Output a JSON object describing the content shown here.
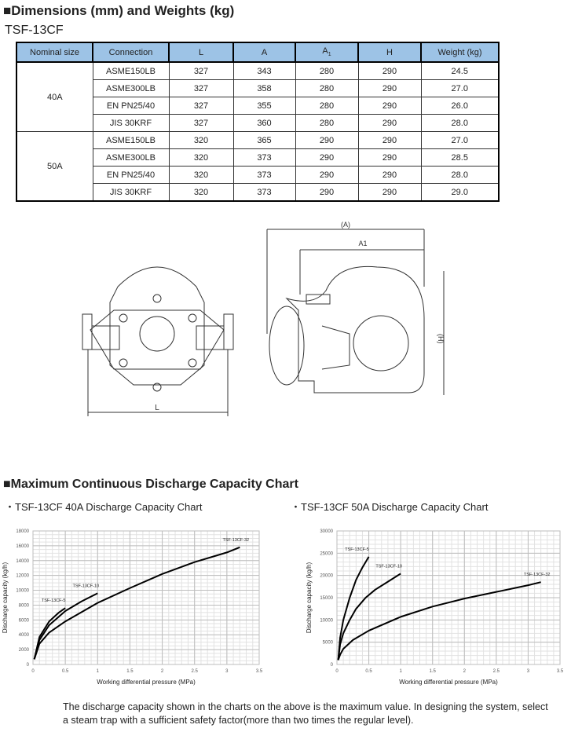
{
  "dimensions": {
    "heading": "■Dimensions (mm) and Weights (kg)",
    "model": "TSF-13CF",
    "columns": [
      "Nominal size",
      "Connection",
      "L",
      "A",
      "A1",
      "H",
      "Weight (kg)"
    ],
    "groups": [
      {
        "size": "40A",
        "rows": [
          [
            "ASME150LB",
            "327",
            "343",
            "280",
            "290",
            "24.5"
          ],
          [
            "ASME300LB",
            "327",
            "358",
            "280",
            "290",
            "27.0"
          ],
          [
            "EN PN25/40",
            "327",
            "355",
            "280",
            "290",
            "26.0"
          ],
          [
            "JIS 30KRF",
            "327",
            "360",
            "280",
            "290",
            "28.0"
          ]
        ]
      },
      {
        "size": "50A",
        "rows": [
          [
            "ASME150LB",
            "320",
            "365",
            "290",
            "290",
            "27.0"
          ],
          [
            "ASME300LB",
            "320",
            "373",
            "290",
            "290",
            "28.5"
          ],
          [
            "EN PN25/40",
            "320",
            "373",
            "290",
            "290",
            "28.0"
          ],
          [
            "JIS 30KRF",
            "320",
            "373",
            "290",
            "290",
            "29.0"
          ]
        ]
      }
    ]
  },
  "drawing": {
    "label_L": "L",
    "label_A": "(A)",
    "label_A1": "A1",
    "label_H": "(H)"
  },
  "capacity": {
    "heading": "■Maximum Continuous Discharge Capacity Chart",
    "note": "The discharge capacity shown in the charts on the above is the maximum value. In designing the system, select a steam trap with a sufficient safety factor(more than two times the regular level)."
  },
  "chart_data": [
    {
      "type": "line",
      "title": "・TSF-13CF 40A Discharge Capacity Chart",
      "xlabel": "Working differential pressure (MPa)",
      "ylabel": "Discharge capacity (kg/h)",
      "xlim": [
        0,
        3.5
      ],
      "ylim": [
        0,
        18000
      ],
      "xticks": [
        "0",
        "0.5",
        "1",
        "1.5",
        "2",
        "2.5",
        "3",
        "3.5"
      ],
      "yticks": [
        "0",
        "2000",
        "4000",
        "6000",
        "8000",
        "10000",
        "12000",
        "14000",
        "16000",
        "18000"
      ],
      "grid": true,
      "series": [
        {
          "name": "TSF-13CF-5",
          "points": [
            [
              0.02,
              700
            ],
            [
              0.1,
              3700
            ],
            [
              0.25,
              5800
            ],
            [
              0.4,
              7000
            ],
            [
              0.5,
              7600
            ]
          ]
        },
        {
          "name": "TSF-13CF-10",
          "points": [
            [
              0.02,
              700
            ],
            [
              0.1,
              3300
            ],
            [
              0.25,
              5300
            ],
            [
              0.5,
              7200
            ],
            [
              0.75,
              8500
            ],
            [
              1,
              9600
            ]
          ]
        },
        {
          "name": "TSF-13CF-32",
          "points": [
            [
              0.02,
              700
            ],
            [
              0.1,
              2800
            ],
            [
              0.25,
              4300
            ],
            [
              0.5,
              5800
            ],
            [
              1,
              8300
            ],
            [
              1.5,
              10300
            ],
            [
              2,
              12200
            ],
            [
              2.5,
              13800
            ],
            [
              3,
              15100
            ],
            [
              3.2,
              15800
            ]
          ]
        }
      ]
    },
    {
      "type": "line",
      "title": "・TSF-13CF 50A Discharge Capacity Chart",
      "xlabel": "Working differential pressure (MPa)",
      "ylabel": "Discharge capacity (kg/h)",
      "xlim": [
        0,
        3.5
      ],
      "ylim": [
        0,
        30000
      ],
      "xticks": [
        "0",
        "0.5",
        "1",
        "1.5",
        "2",
        "2.5",
        "3",
        "3.5"
      ],
      "yticks": [
        "0",
        "5000",
        "10000",
        "15000",
        "20000",
        "25000",
        "30000"
      ],
      "grid": true,
      "series": [
        {
          "name": "TSF-13CF-5",
          "points": [
            [
              0.02,
              1000
            ],
            [
              0.05,
              6000
            ],
            [
              0.1,
              10000
            ],
            [
              0.2,
              15000
            ],
            [
              0.3,
              19000
            ],
            [
              0.4,
              21800
            ],
            [
              0.5,
              24200
            ]
          ]
        },
        {
          "name": "TSF-13CF-10",
          "points": [
            [
              0.02,
              1000
            ],
            [
              0.05,
              4500
            ],
            [
              0.1,
              7000
            ],
            [
              0.2,
              10000
            ],
            [
              0.3,
              12500
            ],
            [
              0.45,
              15000
            ],
            [
              0.6,
              16800
            ],
            [
              0.8,
              18600
            ],
            [
              1,
              20400
            ]
          ]
        },
        {
          "name": "TSF-13CF-32",
          "points": [
            [
              0.02,
              1000
            ],
            [
              0.05,
              2200
            ],
            [
              0.1,
              3500
            ],
            [
              0.25,
              5500
            ],
            [
              0.5,
              7600
            ],
            [
              1,
              10700
            ],
            [
              1.5,
              13000
            ],
            [
              2,
              14800
            ],
            [
              2.5,
              16300
            ],
            [
              3,
              17800
            ],
            [
              3.2,
              18500
            ]
          ]
        }
      ]
    }
  ]
}
